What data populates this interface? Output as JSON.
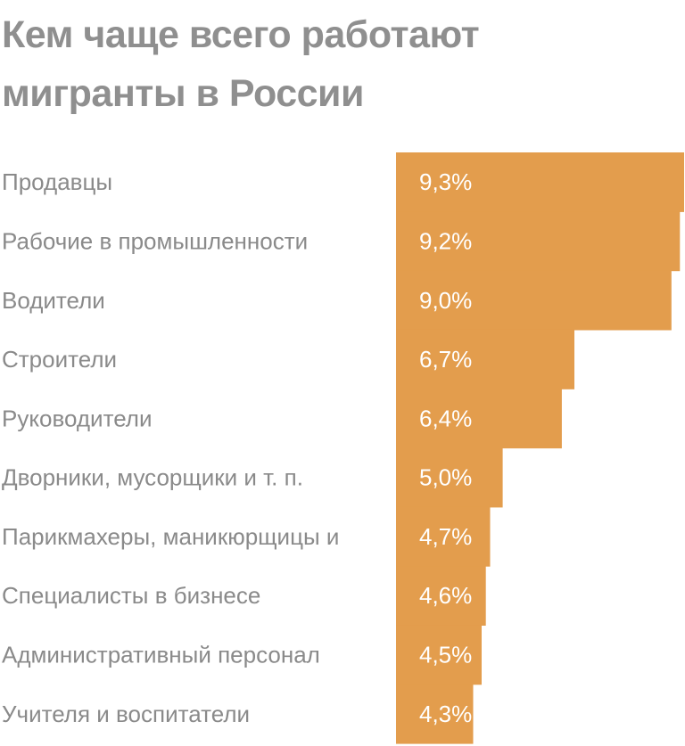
{
  "chart_data": {
    "type": "bar",
    "orientation": "horizontal",
    "title": "Кем чаще всего работают мигранты в России",
    "categories": [
      "Продавцы",
      "Рабочие в промышленности",
      "Водители",
      "Строители",
      "Руководители",
      "Дворники, мусорщики и т. п.",
      "Парикмахеры, маникюрщицы и",
      "Специалисты в бизнесе",
      "Административный персонал",
      "Учителя и воспитатели"
    ],
    "values": [
      9.3,
      9.2,
      9.0,
      6.7,
      6.4,
      5.0,
      4.7,
      4.6,
      4.5,
      4.3
    ],
    "value_labels": [
      "9,3%",
      "9,2%",
      "9,0%",
      "6,7%",
      "6,4%",
      "5,0%",
      "4,7%",
      "4,6%",
      "4,5%",
      "4,3%"
    ],
    "xlim": [
      0,
      9.3
    ],
    "grid": false,
    "legend": "none",
    "bar_color": "#e39d4d"
  }
}
